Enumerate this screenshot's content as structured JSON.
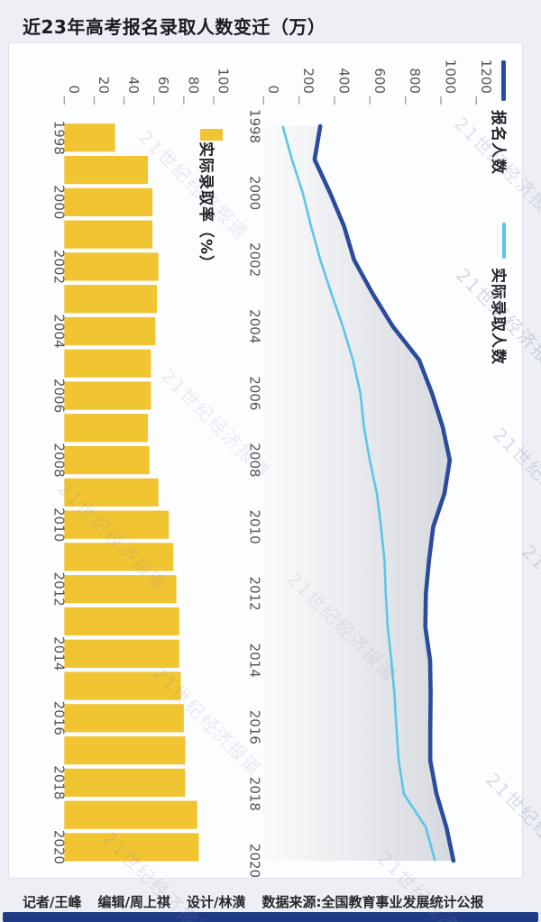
{
  "title": "近23年高考报名录取人数变迁（万）",
  "watermark_text": "21世纪经济报道",
  "footer": {
    "items": [
      "记者/王峰",
      "编辑/周上祺",
      "设计/林潢",
      "数据来源:全国教育事业发展统计公报"
    ]
  },
  "colors": {
    "bar_yellow": "#F1C432",
    "applicants_blue": "#2B4B9C",
    "admitted_cyan": "#5BC6E6",
    "bottom_bar_navy": "#1F3B86",
    "axis_text": "#55565C",
    "area_gradient_from": "#FAFBFC",
    "area_gradient_to": "#D3D6DC"
  },
  "chart_data": {
    "type": "composite",
    "orientation": "rotated-90-clockwise",
    "categories": [
      1998,
      1999,
      2000,
      2001,
      2002,
      2003,
      2004,
      2005,
      2006,
      2007,
      2008,
      2009,
      2010,
      2011,
      2012,
      2013,
      2014,
      2015,
      2016,
      2017,
      2018,
      2019,
      2020
    ],
    "category_label_interval": 2,
    "charts": [
      {
        "type": "bar",
        "legend": "实际录取率（%）",
        "color": "#F1C432",
        "axis_ticks": [
          0,
          20,
          40,
          60,
          80,
          100
        ],
        "value_range": [
          0,
          100
        ],
        "values": [
          34,
          56,
          59,
          59,
          63,
          62,
          61,
          58,
          58,
          56,
          57,
          63,
          70,
          73,
          75,
          77,
          77,
          78,
          80,
          81,
          81,
          89,
          90
        ]
      },
      {
        "type": "line",
        "axis_ticks": [
          0,
          200,
          400,
          600,
          800,
          1000,
          1200
        ],
        "value_range": [
          0,
          1200
        ],
        "area_fill_under": "报名人数",
        "series": [
          {
            "name": "报名人数",
            "color": "#2B4B9C",
            "values": [
              320,
              288,
              375,
              454,
              510,
              613,
              729,
              877,
              950,
              1010,
              1050,
              1020,
              957,
              933,
              915,
              912,
              939,
              942,
              940,
              940,
              975,
              1031,
              1071
            ]
          },
          {
            "name": "实际录取人数",
            "color": "#5BC6E6",
            "values": [
              108,
              160,
              221,
              268,
              320,
              382,
              447,
              504,
              546,
              566,
              599,
              639,
              662,
              682,
              689,
              700,
              721,
              738,
              749,
              762,
              791,
              915,
              967
            ]
          }
        ]
      }
    ]
  }
}
